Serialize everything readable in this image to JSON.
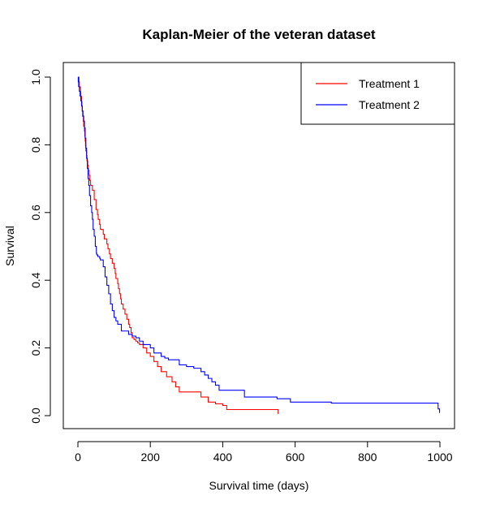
{
  "chart_data": {
    "type": "line",
    "step": true,
    "title": "Kaplan-Meier of the veteran dataset",
    "xlabel": "Survival time (days)",
    "ylabel": "Survival",
    "xlim": [
      0,
      1000
    ],
    "ylim": [
      0,
      1.0
    ],
    "xticks": [
      0,
      200,
      400,
      600,
      800,
      1000
    ],
    "yticks": [
      0.0,
      0.2,
      0.4,
      0.6,
      0.8,
      1.0
    ],
    "xtick_labels": [
      "0",
      "200",
      "400",
      "600",
      "800",
      "1000"
    ],
    "ytick_labels": [
      "0.0",
      "0.2",
      "0.4",
      "0.6",
      "0.8",
      "1.0"
    ],
    "grid": false,
    "legend_position": "top-right",
    "series": [
      {
        "name": "Treatment 1",
        "color": "#ff0000",
        "x": [
          0,
          3,
          4,
          7,
          8,
          10,
          11,
          12,
          13,
          15,
          16,
          18,
          19,
          20,
          21,
          22,
          24,
          25,
          27,
          29,
          31,
          33,
          35,
          36,
          40,
          45,
          50,
          54,
          56,
          60,
          62,
          64,
          70,
          73,
          80,
          83,
          87,
          90,
          95,
          100,
          103,
          105,
          110,
          112,
          115,
          118,
          120,
          125,
          130,
          135,
          140,
          143,
          147,
          150,
          155,
          160,
          165,
          170,
          180,
          190,
          200,
          210,
          220,
          230,
          245,
          260,
          270,
          280,
          300,
          320,
          340,
          360,
          380,
          400,
          411,
          460,
          500,
          553
        ],
        "y": [
          1.0,
          0.986,
          0.971,
          0.957,
          0.943,
          0.928,
          0.913,
          0.899,
          0.884,
          0.869,
          0.855,
          0.84,
          0.826,
          0.811,
          0.797,
          0.782,
          0.768,
          0.753,
          0.739,
          0.724,
          0.71,
          0.695,
          0.681,
          0.68,
          0.666,
          0.638,
          0.609,
          0.594,
          0.58,
          0.565,
          0.551,
          0.55,
          0.536,
          0.522,
          0.507,
          0.493,
          0.478,
          0.464,
          0.45,
          0.435,
          0.42,
          0.405,
          0.39,
          0.375,
          0.36,
          0.345,
          0.33,
          0.315,
          0.3,
          0.285,
          0.27,
          0.26,
          0.245,
          0.23,
          0.225,
          0.22,
          0.215,
          0.21,
          0.2,
          0.185,
          0.175,
          0.16,
          0.145,
          0.13,
          0.115,
          0.1,
          0.085,
          0.07,
          0.07,
          0.07,
          0.055,
          0.04,
          0.035,
          0.03,
          0.018,
          0.018,
          0.018,
          0.005
        ]
      },
      {
        "name": "Treatment 2",
        "color": "#0000ff",
        "x": [
          0,
          1,
          2,
          4,
          6,
          8,
          10,
          12,
          14,
          16,
          18,
          20,
          22,
          24,
          26,
          28,
          30,
          32,
          35,
          38,
          40,
          42,
          45,
          48,
          51,
          52,
          55,
          60,
          62,
          70,
          75,
          80,
          85,
          90,
          95,
          100,
          105,
          110,
          120,
          130,
          140,
          150,
          160,
          170,
          180,
          200,
          210,
          230,
          240,
          250,
          260,
          270,
          280,
          300,
          320,
          340,
          350,
          360,
          370,
          380,
          390,
          410,
          430,
          460,
          500,
          550,
          587,
          700,
          800,
          900,
          991,
          995,
          999
        ],
        "y": [
          1.0,
          0.986,
          0.972,
          0.958,
          0.944,
          0.93,
          0.915,
          0.9,
          0.885,
          0.87,
          0.85,
          0.82,
          0.79,
          0.76,
          0.73,
          0.7,
          0.68,
          0.65,
          0.62,
          0.6,
          0.58,
          0.55,
          0.53,
          0.5,
          0.48,
          0.475,
          0.47,
          0.465,
          0.46,
          0.44,
          0.41,
          0.385,
          0.36,
          0.33,
          0.31,
          0.29,
          0.28,
          0.27,
          0.25,
          0.25,
          0.24,
          0.235,
          0.23,
          0.22,
          0.21,
          0.2,
          0.185,
          0.175,
          0.17,
          0.165,
          0.165,
          0.165,
          0.15,
          0.145,
          0.14,
          0.13,
          0.12,
          0.11,
          0.1,
          0.09,
          0.075,
          0.075,
          0.075,
          0.055,
          0.055,
          0.05,
          0.04,
          0.037,
          0.037,
          0.037,
          0.037,
          0.02,
          0.008
        ]
      }
    ]
  }
}
